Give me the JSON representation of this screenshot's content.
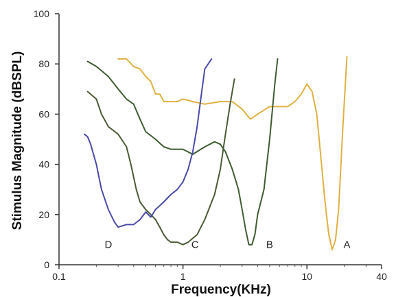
{
  "chart_data": {
    "type": "line",
    "title": "",
    "xlabel": "Frequency(KHz)",
    "ylabel": "Stimulus Magnitude (dBSPL)",
    "x_scale": "log",
    "xlim": [
      0.1,
      40
    ],
    "ylim": [
      0,
      100
    ],
    "x_ticks": [
      {
        "value": 0.1,
        "label": "0.1"
      },
      {
        "value": 1,
        "label": "1"
      },
      {
        "value": 10,
        "label": "10"
      },
      {
        "value": 40,
        "label": "40"
      }
    ],
    "y_ticks": [
      0,
      20,
      40,
      60,
      80,
      100
    ],
    "grid": false,
    "series": [
      {
        "name": "A",
        "color": "#e0b040",
        "label_at": [
          21,
          8
        ],
        "points": [
          [
            0.3,
            82
          ],
          [
            0.35,
            82
          ],
          [
            0.4,
            79
          ],
          [
            0.45,
            78
          ],
          [
            0.5,
            75
          ],
          [
            0.55,
            73
          ],
          [
            0.6,
            68
          ],
          [
            0.65,
            68
          ],
          [
            0.7,
            65
          ],
          [
            0.8,
            65
          ],
          [
            0.9,
            65
          ],
          [
            1.0,
            66
          ],
          [
            1.2,
            65
          ],
          [
            1.5,
            64
          ],
          [
            2.0,
            65
          ],
          [
            2.5,
            65
          ],
          [
            3.0,
            62
          ],
          [
            3.5,
            58
          ],
          [
            4.0,
            60
          ],
          [
            5.0,
            63
          ],
          [
            6.0,
            63
          ],
          [
            7.0,
            63
          ],
          [
            8.0,
            65
          ],
          [
            9.0,
            68
          ],
          [
            10.0,
            72
          ],
          [
            11.0,
            69
          ],
          [
            12.0,
            60
          ],
          [
            13.0,
            42
          ],
          [
            14.0,
            25
          ],
          [
            15.0,
            12
          ],
          [
            16.0,
            6
          ],
          [
            17.0,
            10
          ],
          [
            18.0,
            22
          ],
          [
            19.5,
            55
          ],
          [
            21.0,
            83
          ]
        ]
      },
      {
        "name": "B",
        "color": "#3e5c30",
        "label_at": [
          5.0,
          8
        ],
        "points": [
          [
            0.17,
            81
          ],
          [
            0.2,
            79
          ],
          [
            0.25,
            75
          ],
          [
            0.3,
            70
          ],
          [
            0.35,
            66
          ],
          [
            0.4,
            64
          ],
          [
            0.45,
            58
          ],
          [
            0.5,
            53
          ],
          [
            0.6,
            50
          ],
          [
            0.7,
            47
          ],
          [
            0.8,
            46
          ],
          [
            1.0,
            46
          ],
          [
            1.2,
            44
          ],
          [
            1.5,
            47
          ],
          [
            1.8,
            49
          ],
          [
            2.0,
            48
          ],
          [
            2.2,
            45
          ],
          [
            2.5,
            38
          ],
          [
            2.8,
            30
          ],
          [
            3.0,
            22
          ],
          [
            3.2,
            14
          ],
          [
            3.4,
            8
          ],
          [
            3.6,
            8
          ],
          [
            3.8,
            12
          ],
          [
            4.0,
            20
          ],
          [
            4.5,
            30
          ],
          [
            5.0,
            50
          ],
          [
            5.5,
            72
          ],
          [
            5.8,
            82
          ]
        ]
      },
      {
        "name": "C",
        "color": "#4a5a34",
        "label_at": [
          1.25,
          8
        ],
        "points": [
          [
            0.17,
            69
          ],
          [
            0.2,
            66
          ],
          [
            0.22,
            60
          ],
          [
            0.25,
            55
          ],
          [
            0.3,
            52
          ],
          [
            0.35,
            47
          ],
          [
            0.38,
            40
          ],
          [
            0.42,
            30
          ],
          [
            0.45,
            25
          ],
          [
            0.5,
            22
          ],
          [
            0.55,
            20
          ],
          [
            0.6,
            18
          ],
          [
            0.65,
            15
          ],
          [
            0.7,
            12
          ],
          [
            0.75,
            10
          ],
          [
            0.8,
            9
          ],
          [
            0.9,
            9
          ],
          [
            1.0,
            8
          ],
          [
            1.1,
            9
          ],
          [
            1.3,
            12
          ],
          [
            1.5,
            18
          ],
          [
            1.8,
            28
          ],
          [
            2.0,
            38
          ],
          [
            2.2,
            52
          ],
          [
            2.4,
            64
          ],
          [
            2.6,
            74
          ]
        ]
      },
      {
        "name": "D",
        "color": "#4a4aa8",
        "label_at": [
          0.25,
          8
        ],
        "points": [
          [
            0.16,
            52
          ],
          [
            0.17,
            51
          ],
          [
            0.18,
            48
          ],
          [
            0.2,
            40
          ],
          [
            0.22,
            30
          ],
          [
            0.25,
            22
          ],
          [
            0.28,
            17
          ],
          [
            0.3,
            15
          ],
          [
            0.35,
            16
          ],
          [
            0.4,
            16
          ],
          [
            0.45,
            18
          ],
          [
            0.5,
            21
          ],
          [
            0.55,
            19
          ],
          [
            0.6,
            22
          ],
          [
            0.7,
            25
          ],
          [
            0.8,
            28
          ],
          [
            0.9,
            30
          ],
          [
            1.0,
            33
          ],
          [
            1.1,
            38
          ],
          [
            1.2,
            45
          ],
          [
            1.3,
            55
          ],
          [
            1.4,
            67
          ],
          [
            1.5,
            78
          ],
          [
            1.7,
            82
          ]
        ]
      }
    ]
  }
}
